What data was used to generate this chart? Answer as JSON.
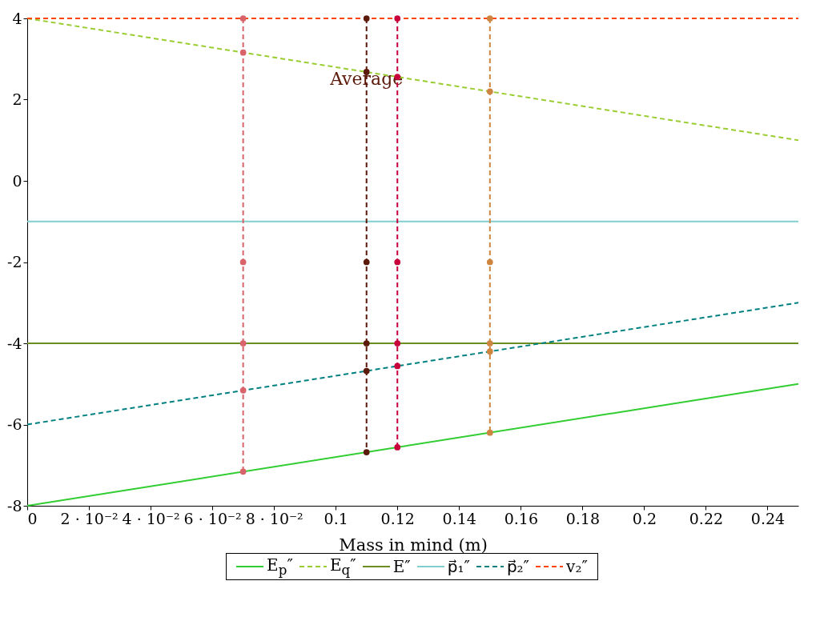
{
  "chart_data": {
    "type": "line",
    "xlabel": "Mass in mind (m)",
    "x": [
      0,
      0.25
    ],
    "series": [
      {
        "name": "E$_{p}$″",
        "color": "#32cd32",
        "values": [
          -8,
          -5
        ]
      },
      {
        "name": "E$_{q}$″",
        "color": "#9acd32",
        "values": [
          4,
          1
        ],
        "line_style": "dashed"
      },
      {
        "name": "E″",
        "color": "#6b8e23",
        "values": [
          -4,
          -4
        ]
      },
      {
        "name": "p⃗₁″",
        "color": "#7fcfcf",
        "values": [
          -1,
          -1
        ]
      },
      {
        "name": "p⃗₂″",
        "color": "#008080",
        "values": [
          -6,
          -3
        ],
        "line_style": "dashed"
      },
      {
        "name": "v₂″",
        "color": "#ff4500",
        "values": [
          4,
          4
        ],
        "line_style": "dashed"
      },
      {
        "color": "#d9636b",
        "x": [
          0.07,
          0.07,
          0.07,
          0.07,
          0.07,
          0.07
        ],
        "values": [
          4,
          3.16,
          -2,
          -4,
          -5.16,
          -7.16
        ],
        "line_style": "dashed",
        "marker": "circle"
      },
      {
        "color": "#5c1a0a",
        "x": [
          0.11,
          0.11,
          0.11,
          0.11,
          0.11,
          0.11
        ],
        "values": [
          4,
          2.68,
          -2,
          -4,
          -4.68,
          -6.68
        ],
        "line_style": "dashed",
        "marker": "circle"
      },
      {
        "color": "#c8003c",
        "x": [
          0.12,
          0.12,
          0.12,
          0.12,
          0.12,
          0.12
        ],
        "values": [
          4,
          2.56,
          -2,
          -4,
          -4.56,
          -6.56
        ],
        "line_style": "dashed",
        "marker": "circle"
      },
      {
        "color": "#cd853f",
        "x": [
          0.15,
          0.15,
          0.15,
          0.15,
          0.15,
          0.15
        ],
        "values": [
          4,
          2.2,
          -2,
          -4,
          -4.2,
          -6.2
        ],
        "line_style": "dashed",
        "marker": "circle"
      }
    ],
    "annotations": [
      {
        "text": "Average",
        "x": 0.11,
        "y": 2.5
      }
    ],
    "xlim": [
      0,
      0.25
    ],
    "ylim": [
      -8,
      4
    ],
    "xticks": [
      0,
      {
        "value": 0.02,
        "label": "2 · 10⁻²"
      },
      {
        "value": 0.04,
        "label": "4 · 10⁻²"
      },
      {
        "value": 0.06,
        "label": "6 · 10⁻²"
      },
      {
        "value": 0.08,
        "label": "8 · 10⁻²"
      },
      0.1,
      0.12,
      0.14,
      0.16,
      0.18,
      0.2,
      0.22,
      0.24
    ],
    "yticks": [
      -8,
      -6,
      -4,
      -2,
      0,
      2,
      4
    ],
    "grid": false,
    "legend": "bottom"
  }
}
